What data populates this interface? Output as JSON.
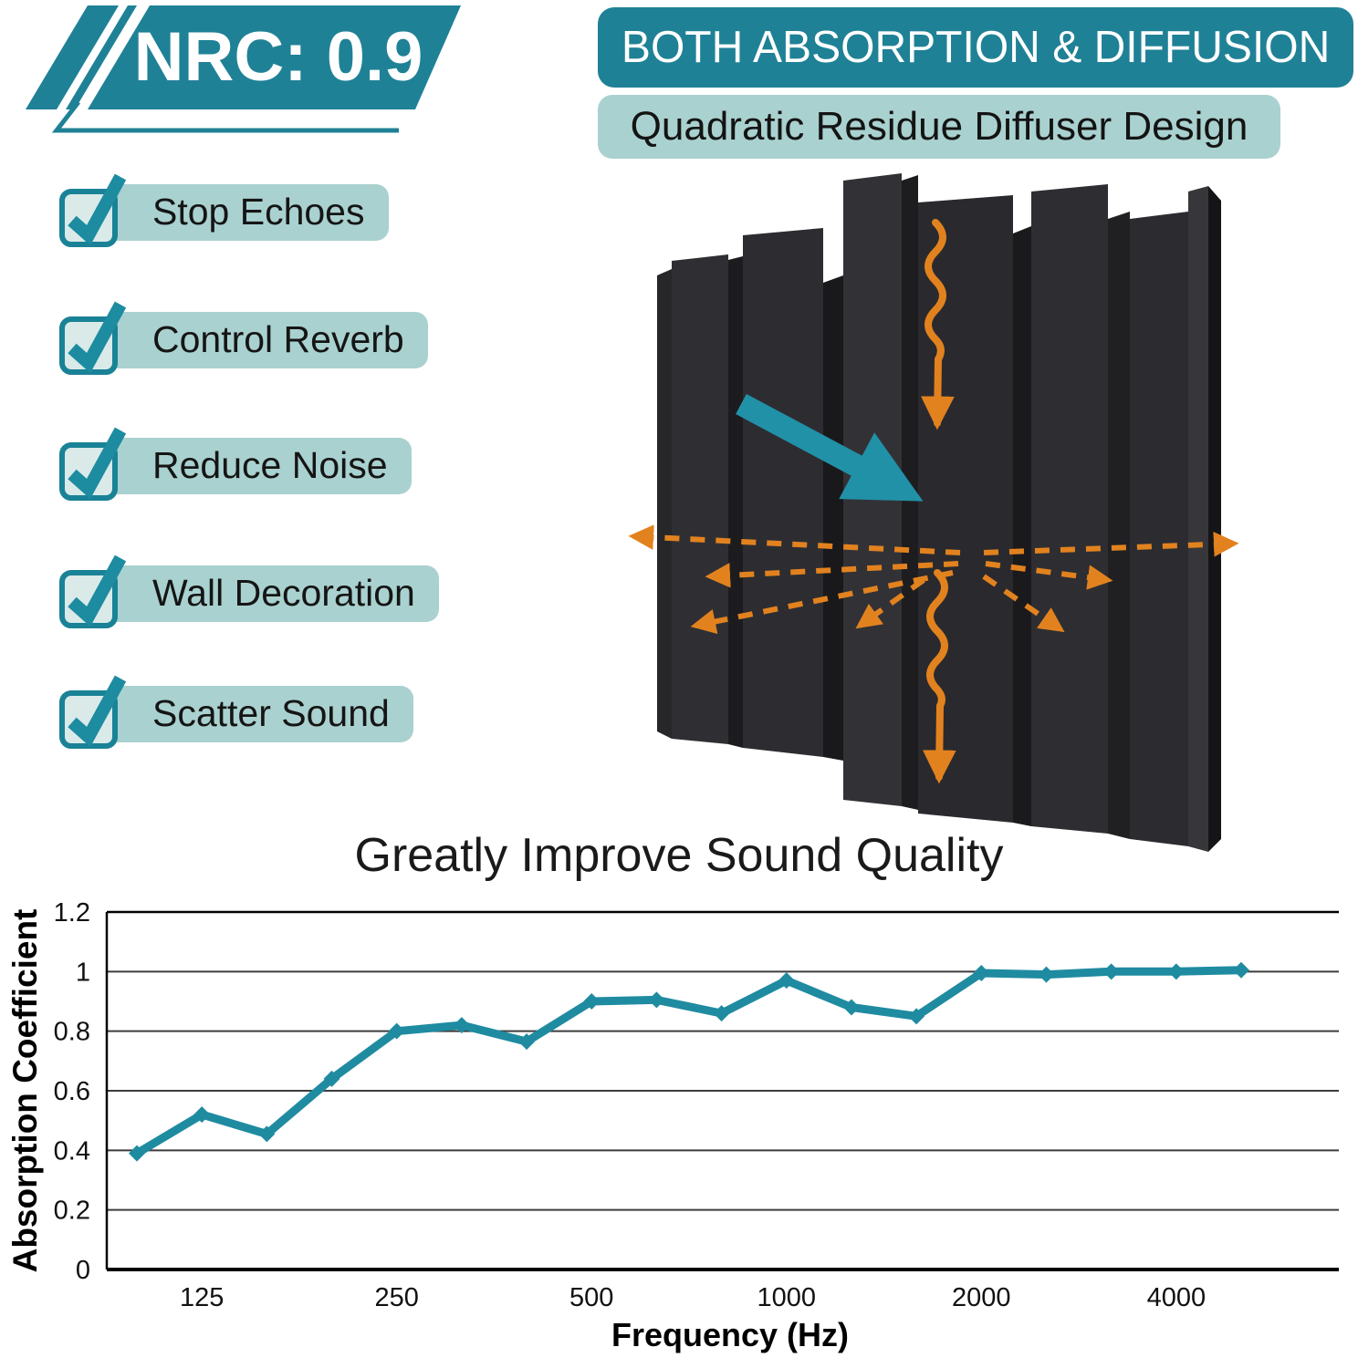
{
  "badge": {
    "label": "NRC: 0.9"
  },
  "banners": {
    "primary": "BOTH ABSORPTION & DIFFUSION",
    "secondary": "Quadratic Residue Diffuser Design"
  },
  "checklist": {
    "icon": "check-icon",
    "items": [
      {
        "label": "Stop Echoes"
      },
      {
        "label": "Control Reverb"
      },
      {
        "label": "Reduce Noise"
      },
      {
        "label": "Wall Decoration"
      },
      {
        "label": "Scatter Sound"
      }
    ]
  },
  "illustration": {
    "icons": [
      "incident-sound-arrow",
      "scattered-sound-arrows",
      "absorbed-sound-wave-arrow",
      "acoustic-foam-panel"
    ]
  },
  "colors": {
    "teal": "#1f8196",
    "teal_arrow": "#2191a8",
    "light_teal": "#a9d1cf",
    "orange": "#e2821f",
    "panel_dark": "#2a2a2e",
    "chart_line": "#1f8ba1",
    "text": "#111111"
  },
  "chart_data": {
    "type": "line",
    "title": "Greatly Improve Sound Quality",
    "xlabel": "Frequency (Hz)",
    "ylabel": "Absorption Coefficient",
    "x": [
      100,
      125,
      160,
      200,
      250,
      315,
      400,
      500,
      630,
      800,
      1000,
      1250,
      1600,
      2000,
      2500,
      3150,
      4000,
      5000
    ],
    "values": [
      0.39,
      0.52,
      0.455,
      0.64,
      0.8,
      0.82,
      0.765,
      0.9,
      0.905,
      0.86,
      0.97,
      0.88,
      0.85,
      0.995,
      0.99,
      1.0,
      1.0,
      1.005
    ],
    "x_tick_labels": [
      "125",
      "250",
      "500",
      "1000",
      "2000",
      "4000"
    ],
    "x_tick_indices": [
      1,
      4,
      7,
      10,
      13,
      16
    ],
    "y_ticks": [
      0,
      0.2,
      0.4,
      0.6,
      0.8,
      1,
      1.2
    ],
    "ylim": [
      0,
      1.2
    ],
    "xscale": "log-banded",
    "grid": true,
    "legend": false,
    "line_color": "#1f8ba1",
    "marker": "diamond"
  }
}
